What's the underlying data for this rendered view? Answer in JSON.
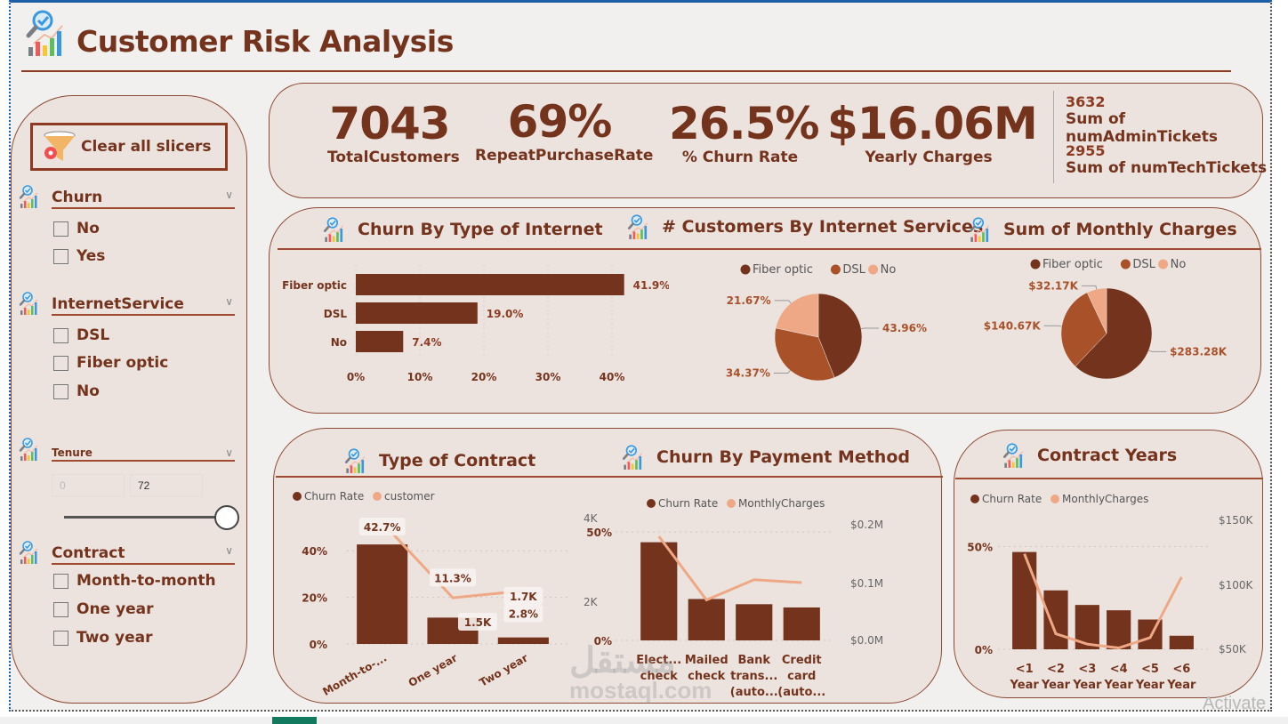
{
  "header": {
    "title": "Customer Risk Analysis",
    "icon": "analytics-magnifier-icon"
  },
  "slicers": {
    "clear_button": {
      "label": "Clear all slicers",
      "icon": "funnel-gear-icon"
    },
    "churn": {
      "title": "Churn",
      "options": [
        "No",
        "Yes"
      ]
    },
    "internet_service": {
      "title": "InternetService",
      "options": [
        "DSL",
        "Fiber optic",
        "No"
      ]
    },
    "tenure": {
      "title": "Tenure",
      "min_value": "0",
      "max_value": "72",
      "range_selected": [
        0,
        72
      ],
      "range_bounds": [
        0,
        72
      ]
    },
    "contract": {
      "title": "Contract",
      "options": [
        "Month-to-month",
        "One year",
        "Two year"
      ]
    }
  },
  "kpis": [
    {
      "value": "7043",
      "label": "TotalCustomers"
    },
    {
      "value": "69%",
      "label": "RepeatPurchaseRate"
    },
    {
      "value": "26.5%",
      "label": "% Churn Rate"
    },
    {
      "value": "$16.06M",
      "label": "Yearly Charges"
    }
  ],
  "mini_kpis": [
    {
      "value": "3632",
      "label": "Sum of numAdminTickets"
    },
    {
      "value": "2955",
      "label": "Sum of numTechTickets"
    }
  ],
  "section_titles": {
    "churn_internet": "Churn By Type of Internet",
    "customers_internet": "# Customers By Internet Services",
    "monthly_charges": "Sum of Monthly Charges",
    "contract_type": "Type of Contract",
    "payment_method": "Churn By Payment Method",
    "contract_years": "Contract Years"
  },
  "colors": {
    "primary": "#74331d",
    "secondary": "#a9522a",
    "light": "#eea886",
    "panel": "#ece3df",
    "background": "#f2f0ef"
  },
  "chart_data": [
    {
      "id": "churn_internet",
      "type": "bar",
      "orientation": "horizontal",
      "title": "Churn By Type of Internet",
      "categories": [
        "Fiber optic",
        "DSL",
        "No"
      ],
      "values": [
        41.9,
        19.0,
        7.4
      ],
      "data_labels": [
        "41.9%",
        "19.0%",
        "7.4%"
      ],
      "xlim": [
        0,
        42
      ],
      "xticks": [
        "0%",
        "10%",
        "20%",
        "30%",
        "40%"
      ],
      "xtick_values": [
        0,
        10,
        20,
        30,
        40
      ],
      "grid": true
    },
    {
      "id": "customers_internet",
      "type": "pie",
      "title": "# Customers By Internet Services",
      "legend": [
        "Fiber optic",
        "DSL",
        "No"
      ],
      "legend_position": "top",
      "values": [
        43.96,
        34.37,
        21.67
      ],
      "data_labels": [
        "43.96%",
        "34.37%",
        "21.67%"
      ]
    },
    {
      "id": "monthly_charges",
      "type": "pie",
      "title": "Sum of Monthly Charges",
      "legend": [
        "Fiber optic",
        "DSL",
        "No"
      ],
      "legend_position": "top",
      "values": [
        283.28,
        140.67,
        32.17
      ],
      "data_labels": [
        "$283.28K",
        "$140.67K",
        "$32.17K"
      ]
    },
    {
      "id": "contract_type",
      "type": "bar",
      "title": "Type of Contract",
      "legend": [
        "Churn Rate",
        "customer"
      ],
      "legend_position": "top-left",
      "categories": [
        "Month-to-...",
        "One year",
        "Two year"
      ],
      "series": [
        {
          "name": "Churn Rate",
          "type": "bar",
          "values": [
            42.7,
            11.3,
            2.8
          ],
          "labels": [
            "42.7%",
            "11.3%",
            "2.8%"
          ]
        },
        {
          "name": "customer",
          "type": "line",
          "values": [
            3875,
            1473,
            1695
          ],
          "labels": [
            "",
            "1.5K",
            "1.7K"
          ]
        }
      ],
      "ylim": [
        0,
        50
      ],
      "yticks": [
        "0%",
        "20%",
        "40%"
      ],
      "ytick_values": [
        0,
        20,
        40
      ],
      "y2lim": [
        0,
        4000
      ],
      "y2ticks": [
        "4K",
        "2K"
      ],
      "grid": true
    },
    {
      "id": "payment_method",
      "type": "bar",
      "title": "Churn By Payment Method",
      "legend": [
        "Churn Rate",
        "MonthlyCharges"
      ],
      "legend_position": "top",
      "categories": [
        "Elect... check",
        "Mailed check",
        "Bank trans... (auto...",
        "Credit card (auto..."
      ],
      "series": [
        {
          "name": "Churn Rate",
          "type": "bar",
          "values": [
            45.3,
            19.1,
            16.7,
            15.2
          ]
        },
        {
          "name": "MonthlyCharges",
          "type": "line",
          "values": [
            0.18,
            0.07,
            0.105,
            0.1
          ]
        }
      ],
      "ylim": [
        0,
        55
      ],
      "yticks": [
        "0%",
        "50%"
      ],
      "ytick_values": [
        0,
        50
      ],
      "y2lim": [
        0,
        0.2
      ],
      "y2ticks": [
        "$0.0M",
        "$0.1M",
        "$0.2M"
      ],
      "grid": true
    },
    {
      "id": "contract_years",
      "type": "bar",
      "title": "Contract Years",
      "legend": [
        "Churn Rate",
        "MonthlyCharges"
      ],
      "legend_position": "top-left",
      "categories": [
        "<1 Year",
        "<2 Year",
        "<3 Year",
        "<4 Year",
        "<5 Year",
        "<6 Year"
      ],
      "series": [
        {
          "name": "Churn Rate",
          "type": "bar",
          "values": [
            47.4,
            28.7,
            21.6,
            19.0,
            14.5,
            6.6
          ]
        },
        {
          "name": "MonthlyCharges",
          "type": "line",
          "values": [
            124,
            62,
            54,
            51,
            59,
            106
          ]
        }
      ],
      "ylim": [
        0,
        52
      ],
      "yticks": [
        "0%",
        "50%"
      ],
      "ytick_values": [
        0,
        50
      ],
      "y2lim": [
        50,
        150
      ],
      "y2ticks": [
        "$50K",
        "$100K",
        "$150K"
      ],
      "grid": true
    }
  ],
  "watermark": {
    "arabic": "مستقل",
    "latin": "mostaql.com"
  },
  "os_overlay": {
    "activate_text": "Activate"
  }
}
